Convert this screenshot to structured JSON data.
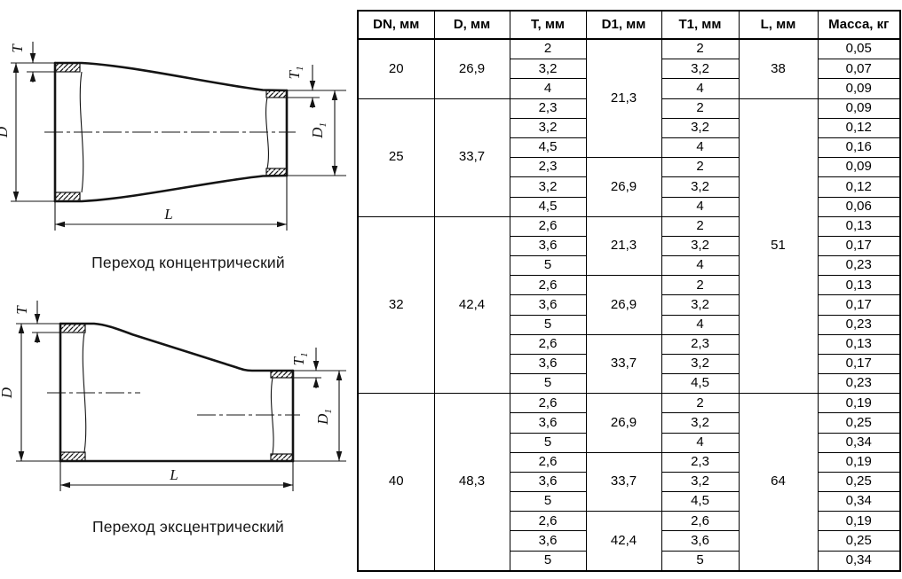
{
  "drawings": {
    "concentric": {
      "caption": "Переход концентрический",
      "labels": {
        "t": "T",
        "d": "D",
        "l": "L",
        "t1_main": "T",
        "t1_sub": "1",
        "d1_main": "D",
        "d1_sub": "1"
      }
    },
    "eccentric": {
      "caption": "Переход эксцентрический",
      "labels": {
        "t": "T",
        "d": "D",
        "l": "L",
        "t1_main": "T",
        "t1_sub": "1",
        "d1_main": "D",
        "d1_sub": "1"
      }
    }
  },
  "table": {
    "headers": [
      "DN, мм",
      "D, мм",
      "T, мм",
      "D1, мм",
      "T1, мм",
      "L, мм",
      "Масса, кг"
    ],
    "rows": [
      [
        {
          "v": "20",
          "rs": 3
        },
        {
          "v": "26,9",
          "rs": 3
        },
        {
          "v": "2"
        },
        {
          "v": "21,3",
          "rs": 6
        },
        {
          "v": "2"
        },
        {
          "v": "38",
          "rs": 3
        },
        {
          "v": "0,05"
        }
      ],
      [
        {
          "v": "3,2"
        },
        {
          "v": "3,2"
        },
        {
          "v": "0,07"
        }
      ],
      [
        {
          "v": "4"
        },
        {
          "v": "4"
        },
        {
          "v": "0,09"
        }
      ],
      [
        {
          "v": "25",
          "rs": 6
        },
        {
          "v": "33,7",
          "rs": 6
        },
        {
          "v": "2,3"
        },
        {
          "v": "2"
        },
        {
          "v": "51",
          "rs": 15
        },
        {
          "v": "0,09"
        }
      ],
      [
        {
          "v": "3,2"
        },
        {
          "v": "3,2"
        },
        {
          "v": "0,12"
        }
      ],
      [
        {
          "v": "4,5"
        },
        {
          "v": "4"
        },
        {
          "v": "0,16"
        }
      ],
      [
        {
          "v": "2,3"
        },
        {
          "v": "26,9",
          "rs": 3
        },
        {
          "v": "2"
        },
        {
          "v": "0,09"
        }
      ],
      [
        {
          "v": "3,2"
        },
        {
          "v": "3,2"
        },
        {
          "v": "0,12"
        }
      ],
      [
        {
          "v": "4,5"
        },
        {
          "v": "4"
        },
        {
          "v": "0,06"
        }
      ],
      [
        {
          "v": "32",
          "rs": 9
        },
        {
          "v": "42,4",
          "rs": 9
        },
        {
          "v": "2,6"
        },
        {
          "v": "21,3",
          "rs": 3
        },
        {
          "v": "2"
        },
        {
          "v": "0,13"
        }
      ],
      [
        {
          "v": "3,6"
        },
        {
          "v": "3,2"
        },
        {
          "v": "0,17"
        }
      ],
      [
        {
          "v": "5"
        },
        {
          "v": "4"
        },
        {
          "v": "0,23"
        }
      ],
      [
        {
          "v": "2,6"
        },
        {
          "v": "26,9",
          "rs": 3
        },
        {
          "v": "2"
        },
        {
          "v": "0,13"
        }
      ],
      [
        {
          "v": "3,6"
        },
        {
          "v": "3,2"
        },
        {
          "v": "0,17"
        }
      ],
      [
        {
          "v": "5"
        },
        {
          "v": "4"
        },
        {
          "v": "0,23"
        }
      ],
      [
        {
          "v": "2,6"
        },
        {
          "v": "33,7",
          "rs": 3
        },
        {
          "v": "2,3"
        },
        {
          "v": "0,13"
        }
      ],
      [
        {
          "v": "3,6"
        },
        {
          "v": "3,2"
        },
        {
          "v": "0,17"
        }
      ],
      [
        {
          "v": "5"
        },
        {
          "v": "4,5"
        },
        {
          "v": "0,23"
        }
      ],
      [
        {
          "v": "40",
          "rs": 9
        },
        {
          "v": "48,3",
          "rs": 9
        },
        {
          "v": "2,6"
        },
        {
          "v": "26,9",
          "rs": 3
        },
        {
          "v": "2"
        },
        {
          "v": "64",
          "rs": 9
        },
        {
          "v": "0,19"
        }
      ],
      [
        {
          "v": "3,6"
        },
        {
          "v": "3,2"
        },
        {
          "v": "0,25"
        }
      ],
      [
        {
          "v": "5"
        },
        {
          "v": "4"
        },
        {
          "v": "0,34"
        }
      ],
      [
        {
          "v": "2,6"
        },
        {
          "v": "33,7",
          "rs": 3
        },
        {
          "v": "2,3"
        },
        {
          "v": "0,19"
        }
      ],
      [
        {
          "v": "3,6"
        },
        {
          "v": "3,2"
        },
        {
          "v": "0,25"
        }
      ],
      [
        {
          "v": "5"
        },
        {
          "v": "4,5"
        },
        {
          "v": "0,34"
        }
      ],
      [
        {
          "v": "2,6"
        },
        {
          "v": "42,4",
          "rs": 3
        },
        {
          "v": "2,6"
        },
        {
          "v": "0,19"
        }
      ],
      [
        {
          "v": "3,6"
        },
        {
          "v": "3,6"
        },
        {
          "v": "0,25"
        }
      ],
      [
        {
          "v": "5"
        },
        {
          "v": "5"
        },
        {
          "v": "0,34"
        }
      ]
    ]
  }
}
